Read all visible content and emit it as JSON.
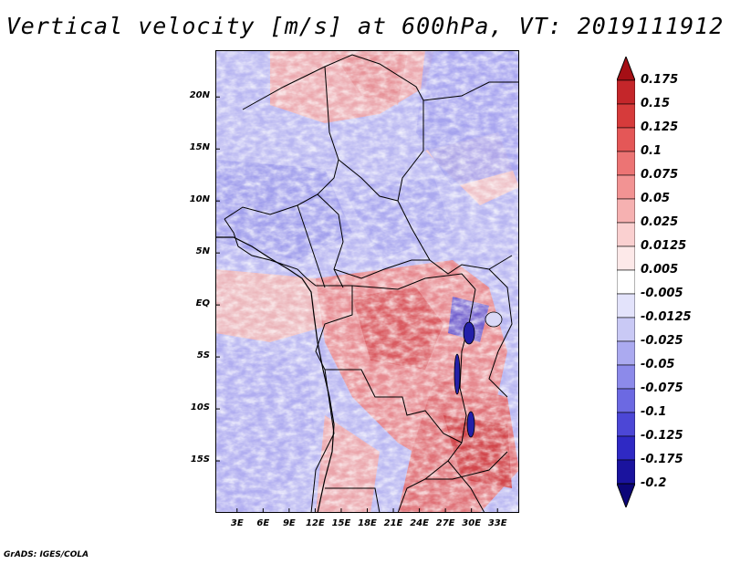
{
  "title": "Vertical velocity [m/s] at 600hPa, VT: 2019111912",
  "footer": "GrADS: IGES/COLA",
  "map": {
    "lat_ticks": [
      {
        "label": "20N",
        "value": 20
      },
      {
        "label": "15N",
        "value": 15
      },
      {
        "label": "10N",
        "value": 10
      },
      {
        "label": "5N",
        "value": 5
      },
      {
        "label": "EQ",
        "value": 0
      },
      {
        "label": "5S",
        "value": -5
      },
      {
        "label": "10S",
        "value": -10
      },
      {
        "label": "15S",
        "value": -15
      }
    ],
    "lon_ticks": [
      {
        "label": "3E",
        "value": 3
      },
      {
        "label": "6E",
        "value": 6
      },
      {
        "label": "9E",
        "value": 9
      },
      {
        "label": "12E",
        "value": 12
      },
      {
        "label": "15E",
        "value": 15
      },
      {
        "label": "18E",
        "value": 18
      },
      {
        "label": "21E",
        "value": 21
      },
      {
        "label": "24E",
        "value": 24
      },
      {
        "label": "27E",
        "value": 27
      },
      {
        "label": "30E",
        "value": 30
      },
      {
        "label": "33E",
        "value": 33
      }
    ],
    "lon_range": [
      0.5,
      35.5
    ],
    "lat_range": [
      -20,
      24.5
    ]
  },
  "colorbar": {
    "levels": [
      "0.175",
      "0.15",
      "0.125",
      "0.1",
      "0.075",
      "0.05",
      "0.025",
      "0.0125",
      "0.005",
      "-0.005",
      "-0.0125",
      "-0.025",
      "-0.05",
      "-0.075",
      "-0.1",
      "-0.125",
      "-0.175",
      "-0.2"
    ],
    "colors": [
      "#a50f15",
      "#c4262a",
      "#d63b3b",
      "#e45757",
      "#ec7474",
      "#f29393",
      "#f6b1b1",
      "#fad0d0",
      "#fde9e9",
      "#ffffff",
      "#e3e3fb",
      "#c9c9f5",
      "#abaaf0",
      "#8c8aea",
      "#6c69e2",
      "#4c47d6",
      "#2f29c4",
      "#1a139e",
      "#0c0678"
    ]
  }
}
